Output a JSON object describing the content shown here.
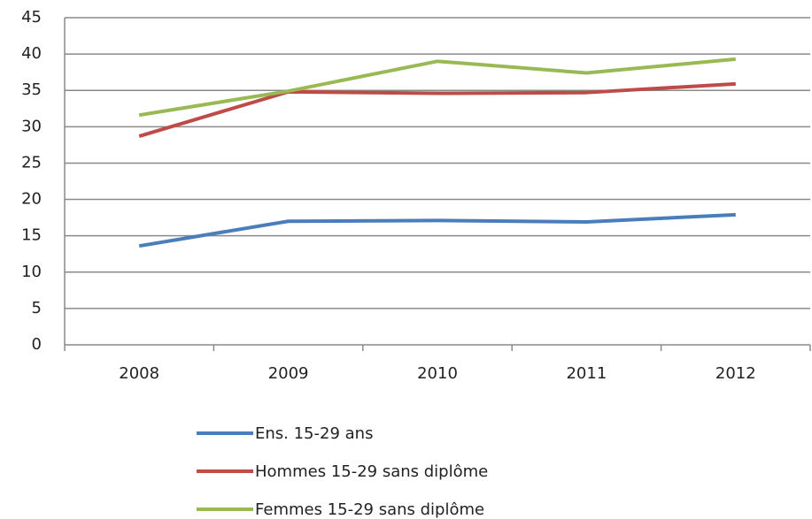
{
  "chart_data": {
    "type": "line",
    "categories": [
      "2008",
      "2009",
      "2010",
      "2011",
      "2012"
    ],
    "series": [
      {
        "name": "Ens. 15-29 ans",
        "color": "#4a7ebb",
        "values": [
          13.6,
          17.0,
          17.1,
          16.9,
          17.9
        ]
      },
      {
        "name": "Hommes 15-29 sans diplôme",
        "color": "#be4b48",
        "values": [
          28.7,
          34.8,
          34.6,
          34.7,
          35.9
        ]
      },
      {
        "name": "Femmes 15-29 sans diplôme",
        "color": "#98b954",
        "values": [
          31.6,
          34.9,
          39.0,
          37.4,
          39.3
        ]
      }
    ],
    "ylim": [
      0,
      45
    ],
    "yticks": [
      0,
      5,
      10,
      15,
      20,
      25,
      30,
      35,
      40,
      45
    ],
    "grid": true,
    "legend": "bottom"
  }
}
